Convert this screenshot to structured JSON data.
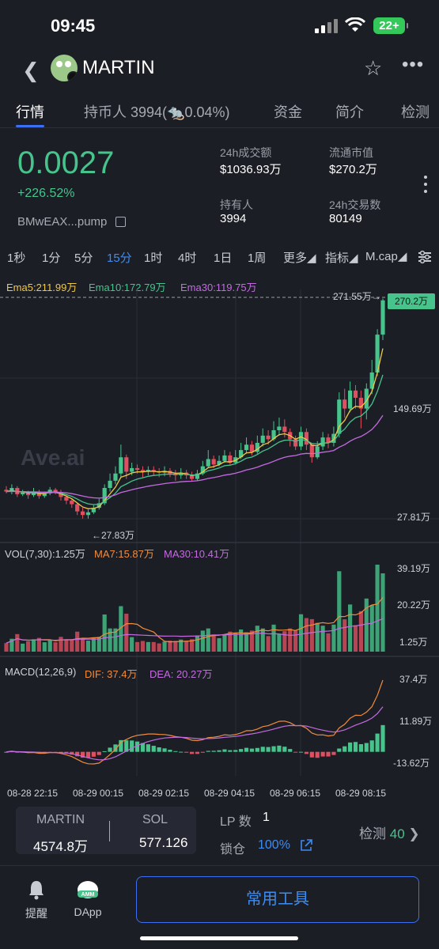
{
  "status": {
    "time": "09:45",
    "battery": "22+"
  },
  "header": {
    "token": "MARTIN"
  },
  "tabs": [
    {
      "label": "行情",
      "active": true
    },
    {
      "label": "持币人 3994(🐀0.04%)"
    },
    {
      "label": "资金"
    },
    {
      "label": "简介"
    },
    {
      "label": "检测"
    }
  ],
  "summary": {
    "price": "0.0027",
    "change": "+226.52%",
    "address": "BMwEAX...pump",
    "stats": [
      {
        "label": "24h成交额",
        "value": "$1036.93万"
      },
      {
        "label": "流通市值",
        "value": "$270.2万"
      },
      {
        "label": "持有人",
        "value": "3994"
      },
      {
        "label": "24h交易数",
        "value": "80149"
      }
    ]
  },
  "timeframes": [
    "1秒",
    "1分",
    "5分",
    "15分",
    "1时",
    "4时",
    "1日",
    "1周",
    "更多◢",
    "指标◢",
    "M.cap◢"
  ],
  "active_timeframe": "15分",
  "ema_legend": {
    "ema5": "Ema5:211.99万",
    "ema10": "Ema10:172.79万",
    "ema30": "Ema30:119.75万"
  },
  "watermark": "Ave.ai",
  "price_axis": {
    "high": "271.55万→",
    "current": "270.2万",
    "mid": "149.69万",
    "low": "27.81万",
    "min_marker": "←27.83万"
  },
  "vol_legend": {
    "vol": "VOL(7,30):1.25万",
    "ma7": "MA7:15.87万",
    "ma30": "MA30:10.41万"
  },
  "vol_axis": [
    "39.19万",
    "20.22万",
    "1.25万"
  ],
  "macd_legend": {
    "macd": "MACD(12,26,9)",
    "dif": "DIF: 37.4万",
    "dea": "DEA: 20.27万"
  },
  "macd_axis": [
    "37.4万",
    "11.89万",
    "-13.62万"
  ],
  "time_axis": [
    "08-28 22:15",
    "08-29 00:15",
    "08-29 02:15",
    "08-29 04:15",
    "08-29 06:15",
    "08-29 08:15"
  ],
  "pool": {
    "token_a": "MARTIN",
    "token_a_amount": "4574.8万",
    "token_b": "SOL",
    "token_b_amount": "577.126"
  },
  "lp": {
    "count_label": "LP 数",
    "count": "1",
    "lock_label": "锁仓",
    "lock_value": "100%"
  },
  "check": {
    "label": "检测",
    "count": "40"
  },
  "bottom_nav": {
    "alert": "提醒",
    "dapp": "DApp",
    "tools": "常用工具"
  },
  "colors": {
    "up": "#47c38c",
    "down": "#e04f5f",
    "ema5": "#f0c84a",
    "ema10": "#47c38c",
    "ema30": "#c46be0",
    "accent": "#3d6ff2"
  },
  "chart_data": {
    "type": "candlestick",
    "y_scale": "market cap (万)",
    "candles": [
      [
        60,
        58,
        64,
        56
      ],
      [
        58,
        62,
        66,
        55
      ],
      [
        62,
        55,
        64,
        52
      ],
      [
        55,
        57,
        60,
        53
      ],
      [
        57,
        54,
        59,
        50
      ],
      [
        54,
        58,
        62,
        52
      ],
      [
        58,
        53,
        60,
        50
      ],
      [
        53,
        56,
        58,
        51
      ],
      [
        56,
        60,
        63,
        54
      ],
      [
        60,
        57,
        62,
        55
      ],
      [
        57,
        52,
        60,
        48
      ],
      [
        52,
        48,
        54,
        44
      ],
      [
        48,
        44,
        50,
        40
      ],
      [
        44,
        36,
        46,
        32
      ],
      [
        36,
        32,
        40,
        28
      ],
      [
        32,
        35,
        38,
        28
      ],
      [
        35,
        40,
        43,
        33
      ],
      [
        40,
        45,
        50,
        38
      ],
      [
        45,
        62,
        66,
        43
      ],
      [
        62,
        70,
        78,
        58
      ],
      [
        70,
        78,
        86,
        66
      ],
      [
        78,
        96,
        110,
        74
      ],
      [
        96,
        80,
        99,
        72
      ],
      [
        80,
        84,
        90,
        76
      ],
      [
        84,
        82,
        88,
        78
      ],
      [
        82,
        80,
        86,
        74
      ],
      [
        80,
        82,
        86,
        76
      ],
      [
        82,
        80,
        86,
        76
      ],
      [
        80,
        79,
        84,
        74
      ],
      [
        79,
        81,
        86,
        75
      ],
      [
        81,
        78,
        84,
        74
      ],
      [
        78,
        76,
        82,
        70
      ],
      [
        76,
        79,
        84,
        72
      ],
      [
        79,
        76,
        82,
        72
      ],
      [
        76,
        72,
        80,
        70
      ],
      [
        72,
        78,
        82,
        70
      ],
      [
        78,
        86,
        92,
        76
      ],
      [
        86,
        94,
        104,
        84
      ],
      [
        94,
        88,
        98,
        84
      ],
      [
        88,
        92,
        98,
        86
      ],
      [
        92,
        98,
        104,
        90
      ],
      [
        98,
        90,
        102,
        88
      ],
      [
        90,
        96,
        104,
        88
      ],
      [
        96,
        104,
        112,
        94
      ],
      [
        104,
        110,
        118,
        100
      ],
      [
        110,
        102,
        114,
        98
      ],
      [
        102,
        112,
        120,
        100
      ],
      [
        112,
        120,
        128,
        108
      ],
      [
        120,
        116,
        126,
        110
      ],
      [
        116,
        126,
        136,
        114
      ],
      [
        126,
        130,
        140,
        120
      ],
      [
        130,
        124,
        138,
        118
      ],
      [
        124,
        116,
        128,
        108
      ],
      [
        116,
        108,
        120,
        104
      ],
      [
        108,
        124,
        130,
        104
      ],
      [
        124,
        110,
        128,
        104
      ],
      [
        110,
        96,
        112,
        90
      ],
      [
        96,
        108,
        114,
        94
      ],
      [
        108,
        118,
        124,
        104
      ],
      [
        118,
        112,
        122,
        106
      ],
      [
        112,
        122,
        130,
        108
      ],
      [
        122,
        160,
        168,
        118
      ],
      [
        160,
        150,
        172,
        140
      ],
      [
        150,
        170,
        180,
        146
      ],
      [
        170,
        162,
        176,
        150
      ],
      [
        162,
        150,
        170,
        128
      ],
      [
        150,
        172,
        178,
        138
      ],
      [
        172,
        190,
        204,
        166
      ],
      [
        190,
        232,
        238,
        186
      ],
      [
        232,
        270,
        272,
        226
      ]
    ]
  }
}
